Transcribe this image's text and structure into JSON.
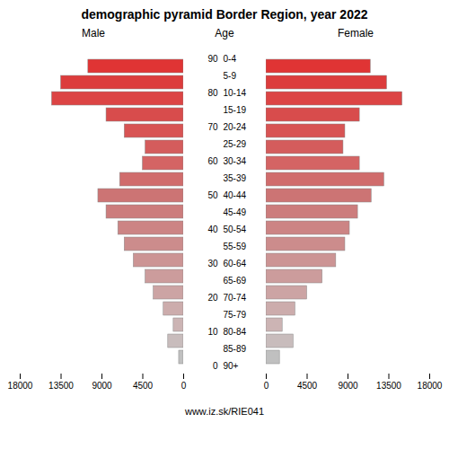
{
  "chart_data": {
    "type": "bar",
    "orientation": "horizontal",
    "title": "demographic pyramid Border Region, year 2022",
    "ylabel": "Age",
    "caption": "www.iz.sk/RIE041",
    "categories": [
      "90+",
      "85-89",
      "80-84",
      "75-79",
      "70-74",
      "65-69",
      "60-64",
      "55-59",
      "50-54",
      "45-49",
      "40-44",
      "35-39",
      "30-34",
      "25-29",
      "20-24",
      "15-19",
      "10-14",
      "5-9",
      "0-4"
    ],
    "series": [
      {
        "name": "Male",
        "values": [
          500,
          1700,
          1100,
          2200,
          3300,
          4200,
          5500,
          6500,
          7200,
          8500,
          9400,
          7000,
          4500,
          4200,
          6500,
          8500,
          14500,
          13500,
          10500
        ]
      },
      {
        "name": "Female",
        "values": [
          1500,
          3000,
          1800,
          3200,
          4500,
          6200,
          7700,
          8700,
          9200,
          10100,
          11600,
          13000,
          10300,
          8500,
          8700,
          10300,
          15000,
          13300,
          11500
        ]
      }
    ],
    "colors": [
      "#c0c0c0",
      "#c8bcbc",
      "#ccb4b4",
      "#ccacac",
      "#cca4a4",
      "#cc9c9c",
      "#cc9494",
      "#cc8c8c",
      "#cc8484",
      "#cc7c7c",
      "#cc7474",
      "#d06c6c",
      "#d46464",
      "#d45c5c",
      "#d85454",
      "#d84c4c",
      "#dc4444",
      "#dc3c3c",
      "#e03434"
    ],
    "annotations": [
      {
        "text": "0",
        "category": "90+"
      },
      {
        "text": "10",
        "category": "80-84"
      },
      {
        "text": "20",
        "category": "70-74"
      },
      {
        "text": "30",
        "category": "60-64"
      },
      {
        "text": "40",
        "category": "50-54"
      },
      {
        "text": "50",
        "category": "40-44"
      },
      {
        "text": "60",
        "category": "30-34"
      },
      {
        "text": "70",
        "category": "20-24"
      },
      {
        "text": "80",
        "category": "10-14"
      },
      {
        "text": "90",
        "category": "0-4"
      }
    ],
    "xlim": [
      0,
      18000
    ],
    "xticks": [
      0,
      4500,
      9000,
      13500,
      18000
    ],
    "grid": false
  }
}
